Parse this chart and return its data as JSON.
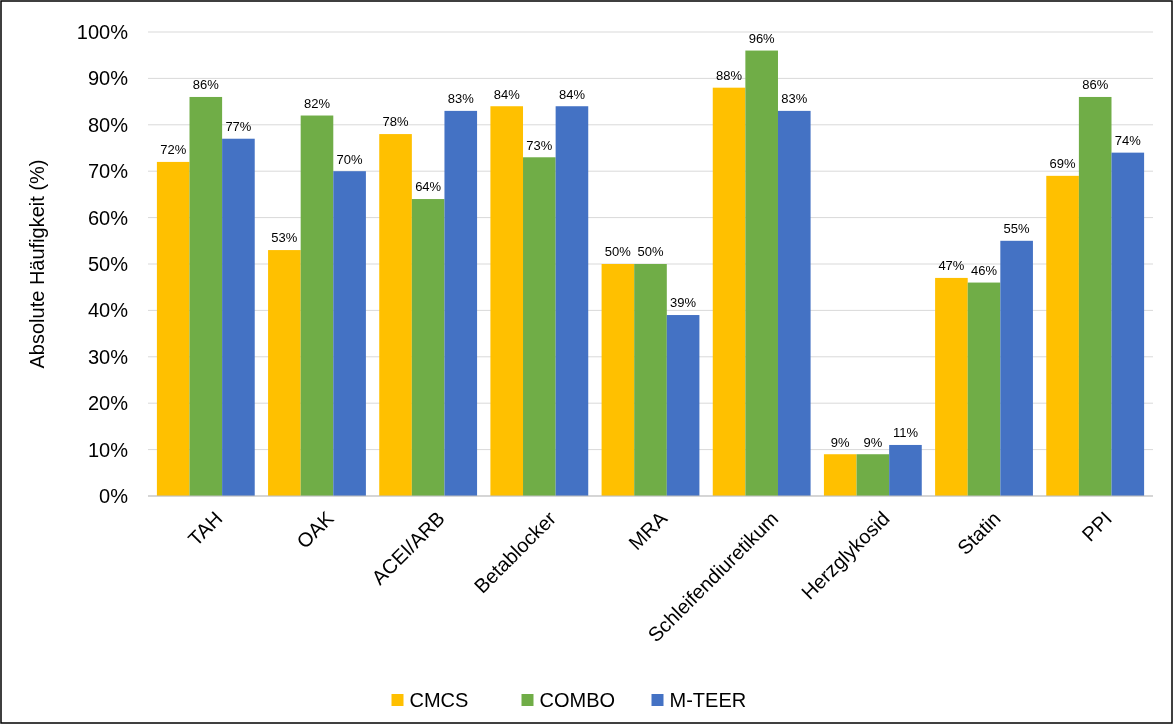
{
  "chart_data": {
    "type": "bar",
    "ylabel": "Absolute Häufigkeit (%)",
    "categories": [
      "TAH",
      "OAK",
      "ACEI/ARB",
      "Betablocker",
      "MRA",
      "Schleifendiuretikum",
      "Herzglykosid",
      "Statin",
      "PPI"
    ],
    "series": [
      {
        "name": "CMCS",
        "color": "#ffc000",
        "values": [
          72,
          53,
          78,
          84,
          50,
          88,
          9,
          47,
          69
        ],
        "value_labels": [
          "72%",
          "53%",
          "78%",
          "84%",
          "50%",
          "88%",
          "9%",
          "47%",
          "69%"
        ]
      },
      {
        "name": "COMBO",
        "color": "#70ad47",
        "values": [
          86,
          82,
          64,
          73,
          50,
          96,
          9,
          46,
          86
        ],
        "value_labels": [
          "86%",
          "82%",
          "64%",
          "73%",
          "50%",
          "96%",
          "9%",
          "46%",
          "86%"
        ]
      },
      {
        "name": "M-TEER",
        "color": "#4472c4",
        "values": [
          77,
          70,
          83,
          84,
          39,
          83,
          11,
          55,
          74
        ],
        "value_labels": [
          "77%",
          "70%",
          "83%",
          "84%",
          "39%",
          "83%",
          "11%",
          "55%",
          "74%"
        ]
      }
    ],
    "ylim": [
      0,
      100
    ],
    "yticks": [
      {
        "value": 0,
        "label": "0%"
      },
      {
        "value": 10,
        "label": "10%"
      },
      {
        "value": 20,
        "label": "20%"
      },
      {
        "value": 30,
        "label": "30%"
      },
      {
        "value": 40,
        "label": "40%"
      },
      {
        "value": 50,
        "label": "50%"
      },
      {
        "value": 60,
        "label": "60%"
      },
      {
        "value": 70,
        "label": "70%"
      },
      {
        "value": 80,
        "label": "80%"
      },
      {
        "value": 90,
        "label": "90%"
      },
      {
        "value": 100,
        "label": "100%"
      }
    ],
    "grid": "y",
    "legend": "bottom"
  }
}
